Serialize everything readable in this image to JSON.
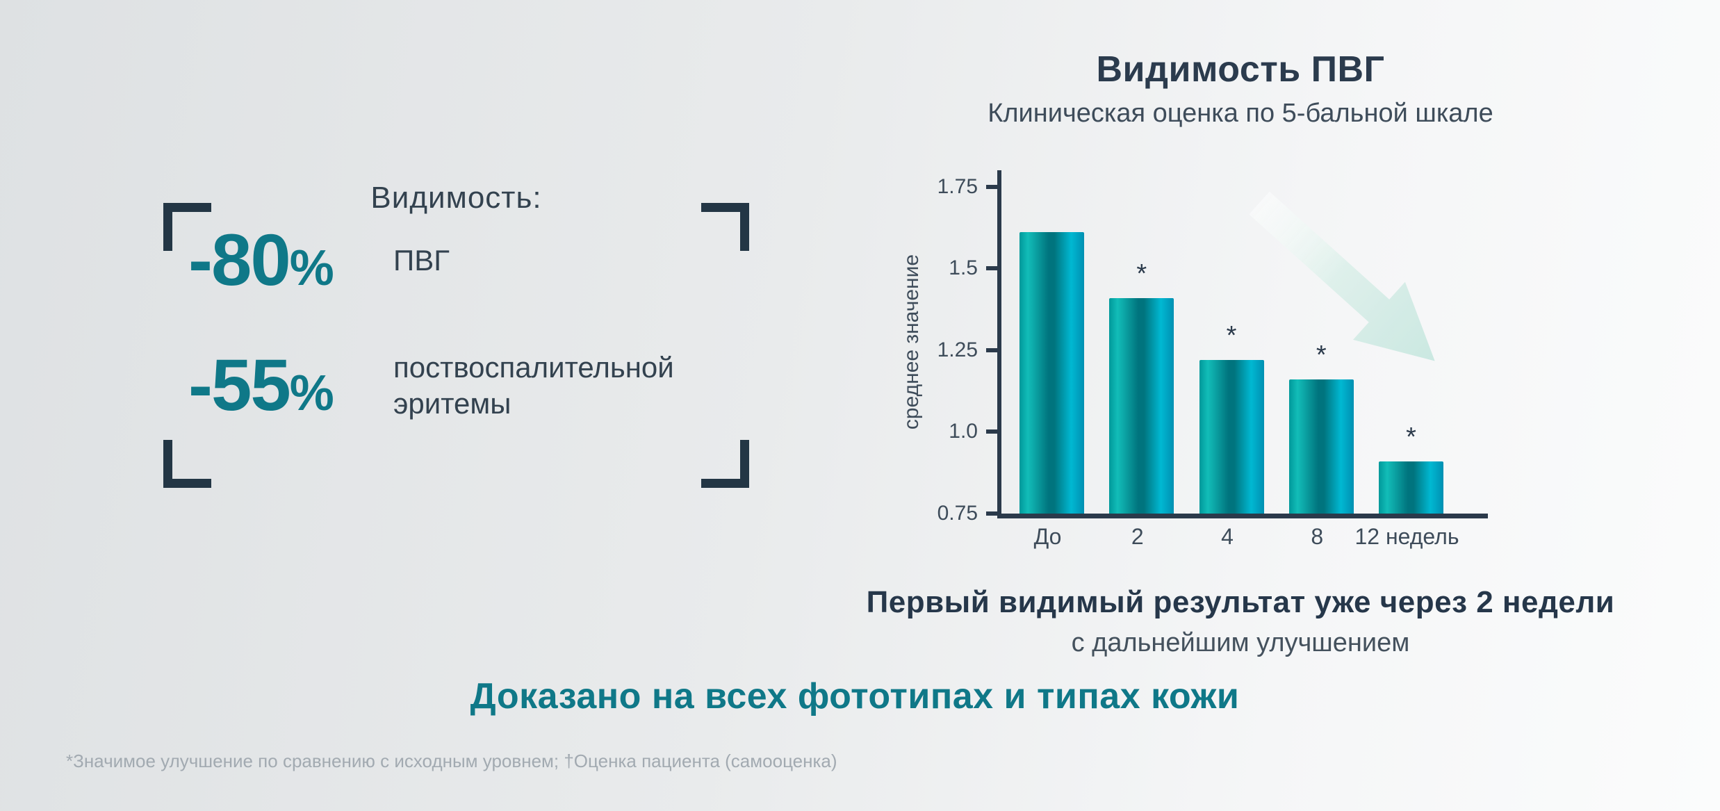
{
  "stat_block": {
    "heading": "Видимость:",
    "items": [
      {
        "value": "-80",
        "unit": "%",
        "label": "ПВГ"
      },
      {
        "value": "-55",
        "unit": "%",
        "label": "поствоспалительной эритемы"
      }
    ]
  },
  "chart_data": {
    "type": "bar",
    "title": "Видимость ПВГ",
    "subtitle": "Клиническая оценка по 5-бальной шкале",
    "categories": [
      "До",
      "2",
      "4",
      "8",
      "12 недель"
    ],
    "values": [
      1.61,
      1.41,
      1.22,
      1.16,
      0.91
    ],
    "significant": [
      false,
      true,
      true,
      true,
      true
    ],
    "significance_marker": "*",
    "xlabel": "",
    "ylabel": "среднее значение",
    "yticks": [
      0.75,
      1.0,
      1.25,
      1.5,
      1.75
    ],
    "ytick_labels": [
      "0.75",
      "1.0",
      "1.25",
      "1.5",
      "1.75"
    ],
    "ylim": [
      0.75,
      1.8
    ],
    "grid": false,
    "legend": null,
    "annotations": [
      "downward trend arrow over bars"
    ],
    "bar_gradient": [
      "#00989a",
      "#12bdb8",
      "#00747e",
      "#00b8d2",
      "#0090b2"
    ]
  },
  "caption": {
    "line1": "Первый видимый результат уже через 2 недели",
    "line2": "с дальнейшим улучшением"
  },
  "claim": "Доказано на всех фототипах и типах кожи",
  "footnote": "*Значимое улучшение по сравнению с исходным уровнем; †Оценка пациента (самооценка)",
  "colors": {
    "accent_teal": "#0f7888",
    "dark_navy": "#2b3a4b",
    "bracket_navy": "#233645",
    "text_gray": "#3e4c5a",
    "footnote_gray": "#a2aab1",
    "arrow_light": "#c7e7e0",
    "background_left": "#dee1e3",
    "background_right": "#fbfcfc"
  }
}
